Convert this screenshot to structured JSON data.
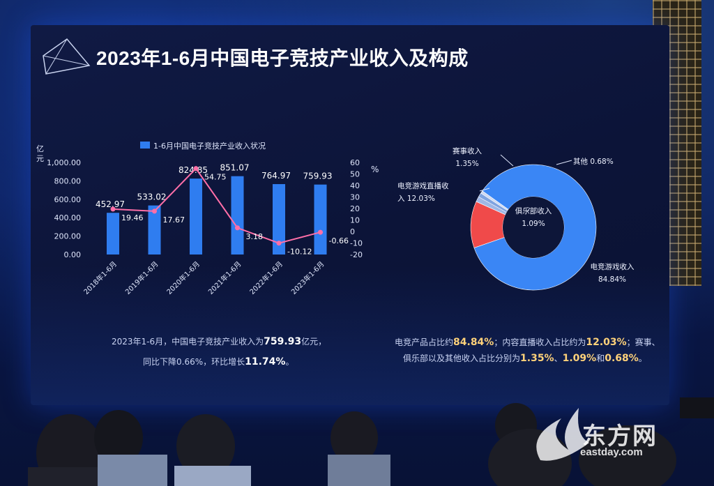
{
  "slide": {
    "title": "2023年1-6月中国电子竞技产业收入及构成"
  },
  "colors": {
    "bar": "#2f7df0",
    "line": "#ff6fa8",
    "donut_main": "#3a86f5",
    "donut_red": "#f04a4a",
    "donut_small": "#9fb7e6"
  },
  "chart_data": [
    {
      "type": "bar",
      "legend": "1-6月中国电子竞技产业收入状况",
      "legend_position": "top",
      "ylabel": "亿元",
      "y2label": "%",
      "ylim": [
        0,
        1000
      ],
      "y2lim": [
        -20,
        60
      ],
      "yticks": [
        "1,000.00",
        "800.00",
        "600.00",
        "400.00",
        "200.00",
        "0.00"
      ],
      "y2ticks": [
        "60",
        "50",
        "40",
        "30",
        "20",
        "10",
        "0",
        "-10",
        "-20"
      ],
      "categories": [
        "2018年1-6月",
        "2019年1-6月",
        "2020年1-6月",
        "2021年1-6月",
        "2022年1-6月",
        "2023年1-6月"
      ],
      "series": [
        {
          "type": "bar",
          "axis": "left",
          "values": [
            452.97,
            533.02,
            824.85,
            851.07,
            764.97,
            759.93
          ],
          "labels": [
            "452.97",
            "533.02",
            "824.85",
            "851.07",
            "764.97",
            "759.93"
          ]
        },
        {
          "type": "line",
          "axis": "right",
          "values": [
            19.46,
            17.67,
            54.75,
            3.18,
            -10.12,
            -0.66
          ],
          "labels": [
            "19.46",
            "17.67",
            "54.75",
            "3.18",
            "-10.12",
            "-0.66"
          ]
        }
      ],
      "grid": false
    },
    {
      "type": "pie",
      "donut": true,
      "slices": [
        {
          "label_lines": [
            "电竞游戏收入",
            "84.84%"
          ],
          "value": 84.84
        },
        {
          "label_lines": [
            "电竞游戏直播收",
            "入 12.03%"
          ],
          "value": 12.03
        },
        {
          "label_lines": [
            "赛事收入",
            "1.35%"
          ],
          "value": 1.35
        },
        {
          "label_lines": [
            "俱乐部收入",
            "1.09%"
          ],
          "value": 1.09
        },
        {
          "label_lines": [
            "其他 0.68%"
          ],
          "value": 0.68
        }
      ]
    }
  ],
  "footnotes": {
    "left_line1_a": "2023年1-6月，中国电子竞技产业收入为",
    "left_line1_b": "759.93",
    "left_line1_c": "亿元，",
    "left_line2_a": "同比下降0.66%，环比增长",
    "left_line2_b": "11.74%",
    "left_line2_c": "。",
    "right_line1_a": "电竞产品占比约",
    "right_line1_b": "84.84%",
    "right_line1_c": "；内容直播收入占比约为",
    "right_line1_d": "12.03%",
    "right_line1_e": "；赛事、",
    "right_line2_a": "俱乐部以及其他收入占比分别为",
    "right_line2_b": "1.35%",
    "right_line2_c": "、",
    "right_line2_d": "1.09%",
    "right_line2_e": "和",
    "right_line2_f": "0.68%",
    "right_line2_g": "。"
  },
  "watermark": {
    "brand": "东方网",
    "url": "eastday.com"
  }
}
